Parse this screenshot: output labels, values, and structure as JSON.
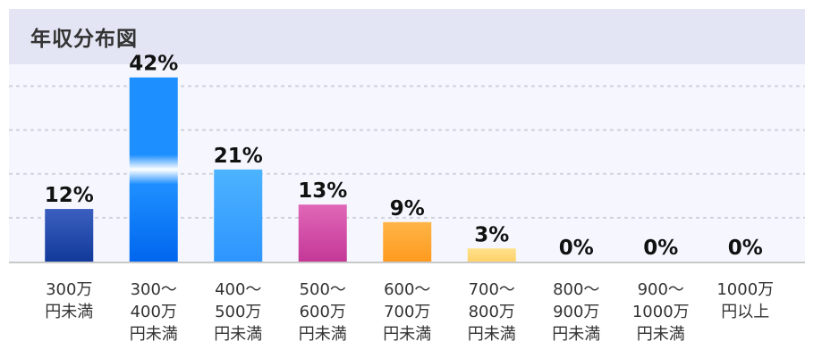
{
  "header": {
    "title": "年収分布図"
  },
  "chart_data": {
    "type": "bar",
    "title": "年収分布図",
    "categories": [
      [
        "300万",
        "円未満"
      ],
      [
        "300～",
        "400万",
        "円未満"
      ],
      [
        "400～",
        "500万",
        "円未満"
      ],
      [
        "500～",
        "600万",
        "円未満"
      ],
      [
        "600～",
        "700万",
        "円未満"
      ],
      [
        "700～",
        "800万",
        "円未満"
      ],
      [
        "800～",
        "900万",
        "円未満"
      ],
      [
        "900～",
        "1000万",
        "円未満"
      ],
      [
        "1000万",
        "円以上"
      ]
    ],
    "values": [
      12,
      42,
      21,
      13,
      9,
      3,
      0,
      0,
      0
    ],
    "value_labels": [
      "12%",
      "42%",
      "21%",
      "13%",
      "9%",
      "3%",
      "0%",
      "0%",
      "0%"
    ],
    "ylim": [
      0,
      45
    ],
    "grid": true,
    "xlabel": "",
    "ylabel": "",
    "colors": [
      [
        "#3a5fbf",
        "#123a9a"
      ],
      [
        "#1e8fff",
        "#0066ee"
      ],
      [
        "#4cb3ff",
        "#2e95ff"
      ],
      [
        "#e067b8",
        "#c43896"
      ],
      [
        "#ffb547",
        "#ff9a1f"
      ],
      [
        "#ffe08c",
        "#ffd26a"
      ],
      [
        "#cccccc",
        "#bbbbbb"
      ],
      [
        "#cccccc",
        "#bbbbbb"
      ],
      [
        "#cccccc",
        "#bbbbbb"
      ]
    ]
  }
}
